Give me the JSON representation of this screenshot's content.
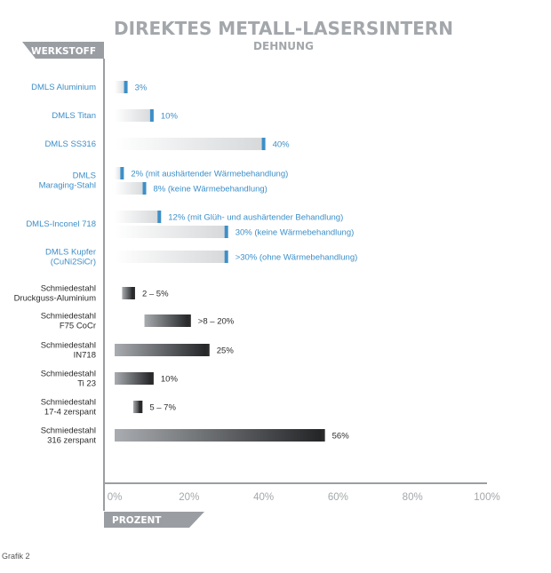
{
  "title": "DIREKTES METALL-LASERSINTERN",
  "subtitle": "DEHNUNG",
  "y_tag": "WERKSTOFF",
  "x_tag": "PROZENT",
  "caption": "Grafik 2",
  "colors": {
    "metal_laser": "#3d8fc8",
    "forged": "#2b2b2b",
    "tag_bg": "#9a9ea3",
    "axis": "#9a9ea3"
  },
  "chart_data": {
    "type": "bar",
    "title": "DIREKTES METALL-LASERSINTERN",
    "subtitle": "DEHNUNG",
    "ylabel": "WERKSTOFF",
    "xlabel": "PROZENT",
    "xlim": [
      0,
      100
    ],
    "xticks": [
      "0%",
      "20%",
      "40%",
      "60%",
      "80%",
      "100%"
    ],
    "grid": false,
    "categories": [
      {
        "label": [
          "DMLS Aluminium"
        ],
        "group": "dmls",
        "bars": [
          {
            "value": 3,
            "label": "3%"
          }
        ]
      },
      {
        "label": [
          "DMLS Titan"
        ],
        "group": "dmls",
        "bars": [
          {
            "value": 10,
            "label": "10%"
          }
        ]
      },
      {
        "label": [
          "DMLS SS316"
        ],
        "group": "dmls",
        "bars": [
          {
            "value": 40,
            "label": "40%"
          }
        ]
      },
      {
        "label": [
          "DMLS",
          "Maraging-Stahl"
        ],
        "group": "dmls",
        "bars": [
          {
            "value": 2,
            "label": "2% (mit aushärtender Wärmebehandlung)"
          },
          {
            "value": 8,
            "label": "8% (keine Wärmebehandlung)"
          }
        ]
      },
      {
        "label": [
          "DMLS-Inconel 718"
        ],
        "group": "dmls",
        "bars": [
          {
            "value": 12,
            "label": "12% (mit Glüh- und aushärtender Behandlung)"
          },
          {
            "value": 30,
            "label": "30% (keine Wärmebehandlung)"
          }
        ]
      },
      {
        "label": [
          "DMLS Kupfer",
          "(CuNi2SiCr)"
        ],
        "group": "dmls",
        "bars": [
          {
            "value": 30,
            "label": ">30% (ohne Wärmebehandlung)"
          }
        ]
      },
      {
        "label": [
          "Schmiedestahl",
          "Druckguss-Aluminium"
        ],
        "group": "forged",
        "bars": [
          {
            "value": 5,
            "range": [
              2,
              5
            ],
            "label": "2 – 5%"
          }
        ]
      },
      {
        "label": [
          "Schmiedestahl",
          "F75 CoCr"
        ],
        "group": "forged",
        "bars": [
          {
            "value": 20,
            "range": [
              8,
              20
            ],
            "label": ">8 – 20%"
          }
        ]
      },
      {
        "label": [
          "Schmiedestahl",
          "IN718"
        ],
        "group": "forged",
        "bars": [
          {
            "value": 25,
            "label": "25%"
          }
        ]
      },
      {
        "label": [
          "Schmiedestahl",
          "Ti 23"
        ],
        "group": "forged",
        "bars": [
          {
            "value": 10,
            "label": "10%"
          }
        ]
      },
      {
        "label": [
          "Schmiedestahl",
          "17-4 zerspant"
        ],
        "group": "forged",
        "bars": [
          {
            "value": 7,
            "range": [
              5,
              7
            ],
            "label": "5 – 7%"
          }
        ]
      },
      {
        "label": [
          "Schmiedestahl",
          "316 zerspant"
        ],
        "group": "forged",
        "bars": [
          {
            "value": 56,
            "label": "56%"
          }
        ]
      }
    ]
  }
}
